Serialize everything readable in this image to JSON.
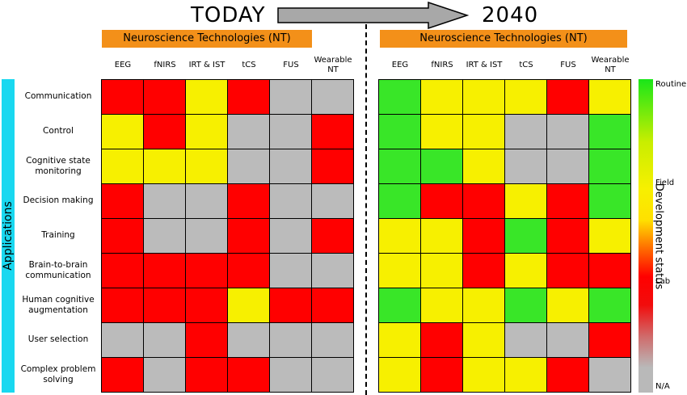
{
  "header": {
    "today": "TODAY",
    "future": "2040"
  },
  "nt_banner": "Neuroscience Technologies (NT)",
  "technologies": [
    "EEG",
    "fNIRS",
    "IRT & IST",
    "tCS",
    "FUS",
    "Wearable NT"
  ],
  "applications_label": "Applications",
  "applications": [
    "Communication",
    "Control",
    "Cognitive state monitoring",
    "Decision making",
    "Training",
    "Brain-to-brain communication",
    "Human cognitive augmentation",
    "User selection",
    "Complex problem solving"
  ],
  "legend": {
    "title": "Development status",
    "ticks": [
      "Routine",
      "Field",
      "Lab",
      "N/A"
    ]
  },
  "colors": {
    "routine": "#39e628",
    "routine_alt": "#80ee10",
    "field": "#f7f000",
    "lab": "#ff0000",
    "lab_dark": "#ee1010",
    "na": "#bbbbbb",
    "banner": "#f39019",
    "applications_bar": "#19d8f0"
  },
  "status_today": [
    [
      "lab",
      "lab",
      "field",
      "lab",
      "na",
      "na"
    ],
    [
      "field",
      "lab",
      "field",
      "na",
      "na",
      "lab"
    ],
    [
      "field",
      "field",
      "field",
      "na",
      "na",
      "lab"
    ],
    [
      "lab",
      "na",
      "na",
      "lab",
      "na",
      "na"
    ],
    [
      "lab",
      "na",
      "na",
      "lab",
      "na",
      "lab"
    ],
    [
      "lab",
      "lab",
      "lab",
      "lab",
      "na",
      "na"
    ],
    [
      "lab",
      "lab",
      "lab",
      "field",
      "lab",
      "lab"
    ],
    [
      "na",
      "na",
      "lab",
      "na",
      "na",
      "na"
    ],
    [
      "lab",
      "na",
      "lab",
      "lab",
      "na",
      "na"
    ]
  ],
  "status_2040": [
    [
      "routine",
      "field",
      "field",
      "field",
      "lab",
      "field"
    ],
    [
      "routine",
      "field",
      "field",
      "na",
      "na",
      "routine"
    ],
    [
      "routine",
      "routine",
      "field",
      "na",
      "na",
      "routine"
    ],
    [
      "routine",
      "lab",
      "lab",
      "field",
      "lab",
      "routine"
    ],
    [
      "field",
      "field",
      "lab",
      "routine",
      "lab",
      "field"
    ],
    [
      "field",
      "field",
      "lab",
      "field",
      "lab",
      "lab"
    ],
    [
      "routine",
      "field",
      "field",
      "routine",
      "field",
      "routine"
    ],
    [
      "field",
      "lab",
      "field",
      "na",
      "na",
      "lab"
    ],
    [
      "field",
      "lab",
      "field",
      "field",
      "lab",
      "na"
    ]
  ]
}
